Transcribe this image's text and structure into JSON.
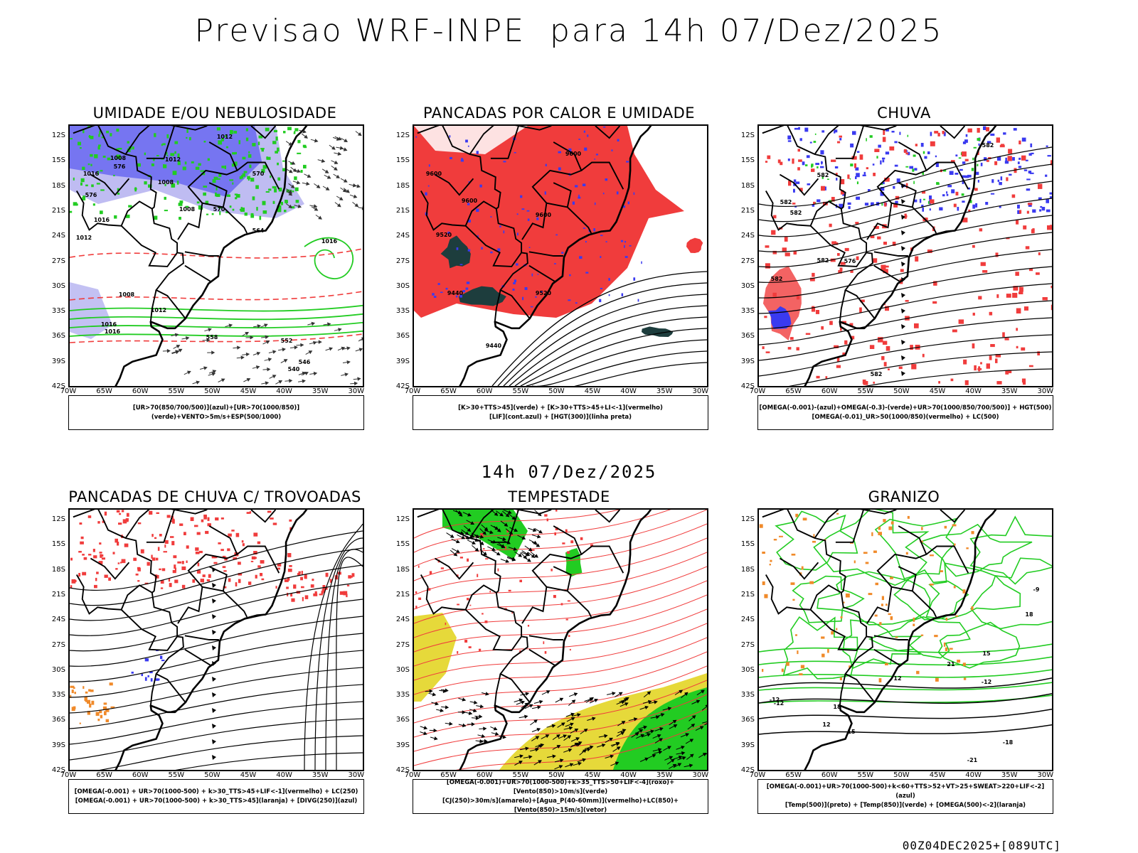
{
  "header": {
    "title": "Previsao WRF-INPE  para 14h 07/Dez/2025",
    "subtitle_time": "14h 07/Dez/2025",
    "run_label": "00Z04DEC2025+[089UTC]"
  },
  "axes": {
    "lat_labels": [
      "12S",
      "15S",
      "18S",
      "21S",
      "24S",
      "27S",
      "30S",
      "33S",
      "36S",
      "39S",
      "42S"
    ],
    "lon_labels": [
      "70W",
      "65W",
      "60W",
      "55W",
      "50W",
      "45W",
      "40W",
      "35W",
      "30W"
    ]
  },
  "colors": {
    "blue": "#3a3af0",
    "light_blue": "#a9a6ee",
    "green": "#22cc22",
    "red": "#f03c3c",
    "dark_teal": "#1d3d3d",
    "yellow": "#e6d93a",
    "orange": "#f08a2a",
    "black": "#000000"
  },
  "panels": [
    {
      "id": "umidade",
      "title": "UMIDADE E/OU NEBULOSIDADE",
      "legend_lines": [
        "[UR>70(850/700/500)](azul)+[UR>70(1000/850)](verde)+VENTO>5m/s+ESP(500/1000)"
      ],
      "contour_labels": [
        "1012",
        "1008",
        "1012",
        "1016",
        "1008",
        "1008",
        "1016",
        "1016",
        "1012",
        "1008",
        "1012",
        "1016",
        "1016",
        "576",
        "570",
        "576",
        "570",
        "564",
        "552",
        "540",
        "546",
        "558"
      ]
    },
    {
      "id": "pancadas-calor",
      "title": "PANCADAS POR CALOR E UMIDADE",
      "legend_lines": [
        "[K>30+TTS>45](verde) + [K>30+TTS>45+LI<-1](vermelho)",
        "[LIF](cont.azul) + [HGT(300)](linha preta)"
      ],
      "contour_labels": [
        "9600",
        "9600",
        "9520",
        "9600",
        "9440",
        "9520",
        "9440",
        "9600"
      ]
    },
    {
      "id": "chuva",
      "title": "CHUVA",
      "legend_lines": [
        "[OMEGA(-0.001)-(azul)+OMEGA(-0.3)-(verde)+UR>70(1000/850/700/500)] + HGT(500)",
        "[OMEGA(-0.01)_UR>50(1000/850)(vermelho) + LC(500)"
      ],
      "contour_labels": [
        "582",
        "582",
        "582",
        "582",
        "582",
        "576",
        "582",
        "582"
      ]
    },
    {
      "id": "pancadas-trovoadas",
      "title": "PANCADAS DE CHUVA C/ TROVOADAS",
      "legend_lines": [
        "[OMEGA(-0.001) + UR>70(1000-500) + k>30_TTS>45+LIF<-1](vermelho) + LC(250)",
        "[OMEGA(-0.001) + UR>70(1000-500) + k>30_TTS>45](laranja) + [DIVG(250)](azul)"
      ],
      "contour_labels": []
    },
    {
      "id": "tempestade",
      "title": "TEMPESTADE",
      "legend_lines": [
        "[OMEGA(-0.001)+UR>70(1000-500)+k>35_TTS>50+LIF<-4](roxo)+[Vento(850)>10m/s](verde)",
        "[CJ(250)>30m/s](amarelo)+[Agua_P(40-60mm)](vermelho)+LC(850)+[Vento(850)>15m/s](vetor)"
      ],
      "contour_labels": []
    },
    {
      "id": "granizo",
      "title": "GRANIZO",
      "legend_lines": [
        "[OMEGA(-0.001)+UR>70(1000-500)+k<60+TTS>52+VT>25+SWEAT>220+LIF<-2](azul)",
        "[Temp(500)](preto) + [Temp(850)](verde) + [OMEGA(500)<-2](laranja)"
      ],
      "contour_labels": [
        "-12",
        "-12",
        "-12",
        "-18",
        "-21",
        "-9",
        "15",
        "18",
        "21",
        "18",
        "12",
        "15",
        "12"
      ]
    }
  ]
}
